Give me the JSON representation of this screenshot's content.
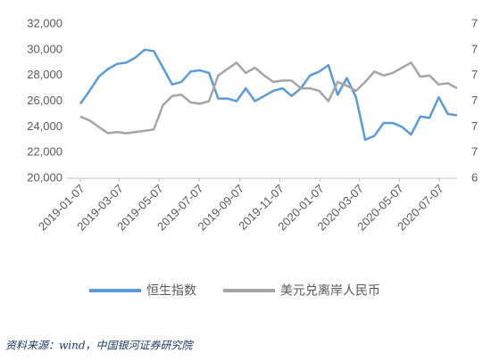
{
  "chart_data": {
    "type": "line",
    "x": [
      "2019-01-07",
      "2019-01-21",
      "2019-02-04",
      "2019-02-18",
      "2019-03-04",
      "2019-03-18",
      "2019-04-01",
      "2019-04-15",
      "2019-04-29",
      "2019-05-13",
      "2019-05-27",
      "2019-06-10",
      "2019-06-24",
      "2019-07-08",
      "2019-07-22",
      "2019-08-05",
      "2019-08-19",
      "2019-09-02",
      "2019-09-16",
      "2019-09-30",
      "2019-10-14",
      "2019-10-28",
      "2019-11-11",
      "2019-11-25",
      "2019-12-09",
      "2019-12-23",
      "2020-01-06",
      "2020-01-20",
      "2020-02-03",
      "2020-02-17",
      "2020-03-02",
      "2020-03-16",
      "2020-03-30",
      "2020-04-13",
      "2020-04-27",
      "2020-05-11",
      "2020-05-25",
      "2020-06-08",
      "2020-06-22",
      "2020-07-06",
      "2020-07-20",
      "2020-08-03"
    ],
    "xlim": [
      "2019-01-07",
      "2020-08-03"
    ],
    "xticks": [
      "2019-01-07",
      "2019-03-07",
      "2019-05-07",
      "2019-07-07",
      "2019-09-07",
      "2019-11-07",
      "2020-01-07",
      "2020-03-07",
      "2020-05-07",
      "2020-07-07"
    ],
    "ylim": [
      20000,
      32000
    ],
    "yticks": [
      {
        "value": 20000,
        "label": "20,000"
      },
      {
        "value": 22000,
        "label": "22,000"
      },
      {
        "value": 24000,
        "label": "24,000"
      },
      {
        "value": 26000,
        "label": "26,000"
      },
      {
        "value": 28000,
        "label": "28,000"
      },
      {
        "value": 30000,
        "label": "30,000"
      },
      {
        "value": 32000,
        "label": "32,000"
      }
    ],
    "y2lim": [
      6.4,
      7.0
    ],
    "y2ticks": [
      {
        "value": 6.4,
        "label": "6"
      },
      {
        "value": 6.5,
        "label": "7"
      },
      {
        "value": 6.6,
        "label": "7"
      },
      {
        "value": 6.7,
        "label": "7"
      },
      {
        "value": 6.8,
        "label": "7"
      },
      {
        "value": 6.9,
        "label": "7"
      },
      {
        "value": 7.0,
        "label": "7"
      }
    ],
    "grid": false,
    "legend": "bottom",
    "series": [
      {
        "name": "恒生指数",
        "color": "#5b9bd5",
        "values": [
          25800,
          26800,
          27900,
          28500,
          28900,
          29000,
          29400,
          30000,
          29900,
          28600,
          27300,
          27500,
          28300,
          28400,
          28200,
          26200,
          26200,
          26000,
          27000,
          26000,
          26400,
          26800,
          27000,
          26400,
          27000,
          28000,
          28300,
          28800,
          26500,
          27800,
          26300,
          23000,
          23300,
          24300,
          24300,
          24000,
          23400,
          24800,
          24700,
          26300,
          25000,
          24900
        ]
      },
      {
        "name": "美元兑离岸人民币",
        "color": "#a5a5a5",
        "axis": "y2",
        "values": [
          6.64,
          6.625,
          6.6,
          6.575,
          6.58,
          6.575,
          6.58,
          6.585,
          6.59,
          6.685,
          6.72,
          6.725,
          6.695,
          6.69,
          6.7,
          6.8,
          6.825,
          6.85,
          6.81,
          6.83,
          6.8,
          6.775,
          6.78,
          6.78,
          6.75,
          6.75,
          6.74,
          6.7,
          6.775,
          6.76,
          6.74,
          6.775,
          6.815,
          6.8,
          6.81,
          6.83,
          6.85,
          6.795,
          6.8,
          6.765,
          6.77,
          6.75
        ]
      }
    ]
  },
  "source": "资料来源：wind，中国银河证券研究院"
}
